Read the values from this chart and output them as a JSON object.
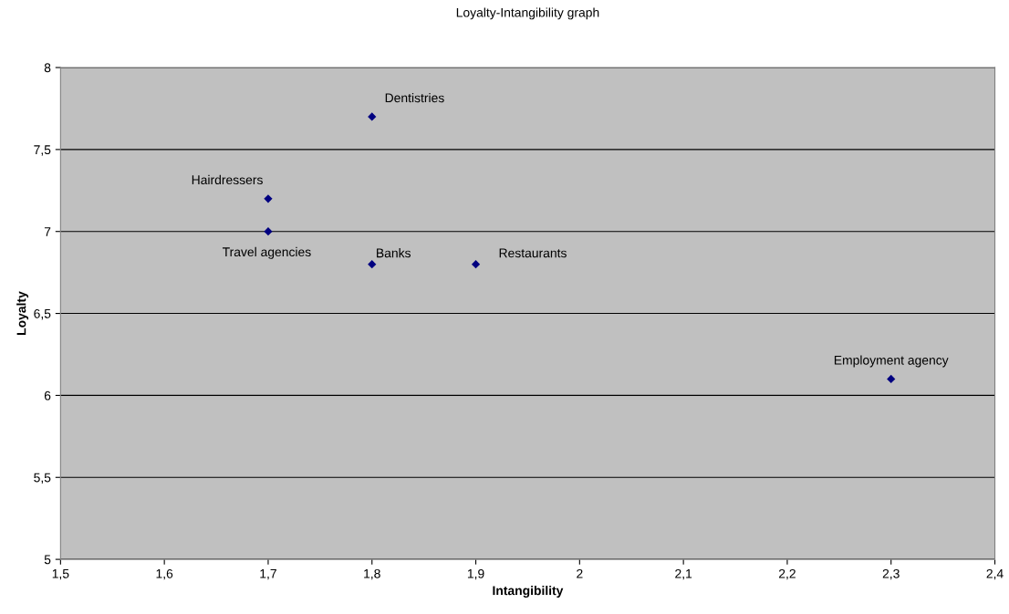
{
  "chart_data": {
    "type": "scatter",
    "title": "Loyalty-Intangibility graph",
    "xlabel": "Intangibility",
    "ylabel": "Loyalty",
    "series": [
      {
        "color": "#000080",
        "x": [
          1.8,
          1.7,
          1.7,
          1.8,
          1.9,
          2.3
        ],
        "values": [
          7.7,
          7.2,
          7.0,
          6.8,
          6.8,
          6.1
        ]
      }
    ],
    "marker": "diamond",
    "grid": "y",
    "legend": false,
    "xlim": [
      1.5,
      2.4
    ],
    "ylim": [
      5,
      8
    ],
    "xticks": [
      {
        "value": 1.5,
        "label": "1,5"
      },
      {
        "value": 1.6,
        "label": "1,6"
      },
      {
        "value": 1.7,
        "label": "1,7"
      },
      {
        "value": 1.8,
        "label": "1,8"
      },
      {
        "value": 1.9,
        "label": "1,9"
      },
      2,
      {
        "value": 2.1,
        "label": "2,1"
      },
      {
        "value": 2.2,
        "label": "2,2"
      },
      {
        "value": 2.3,
        "label": "2,3"
      },
      {
        "value": 2.4,
        "label": "2,4"
      }
    ],
    "yticks": [
      5,
      {
        "value": 5.5,
        "label": "5,5"
      },
      6,
      {
        "value": 6.5,
        "label": "6,5"
      },
      7,
      {
        "value": 7.5,
        "label": "7,5"
      },
      8
    ],
    "annotations": [
      {
        "text": "Dentistries",
        "x": 1.8,
        "y": 7.7
      },
      {
        "text": "Hairdressers",
        "x": 1.7,
        "y": 7.2
      },
      {
        "text": "Travel agencies",
        "x": 1.7,
        "y": 7.0
      },
      {
        "text": "Banks",
        "x": 1.8,
        "y": 6.8
      },
      {
        "text": "Restaurants",
        "x": 1.9,
        "y": 6.8
      },
      {
        "text": "Employment agency",
        "x": 2.3,
        "y": 6.1
      }
    ]
  }
}
